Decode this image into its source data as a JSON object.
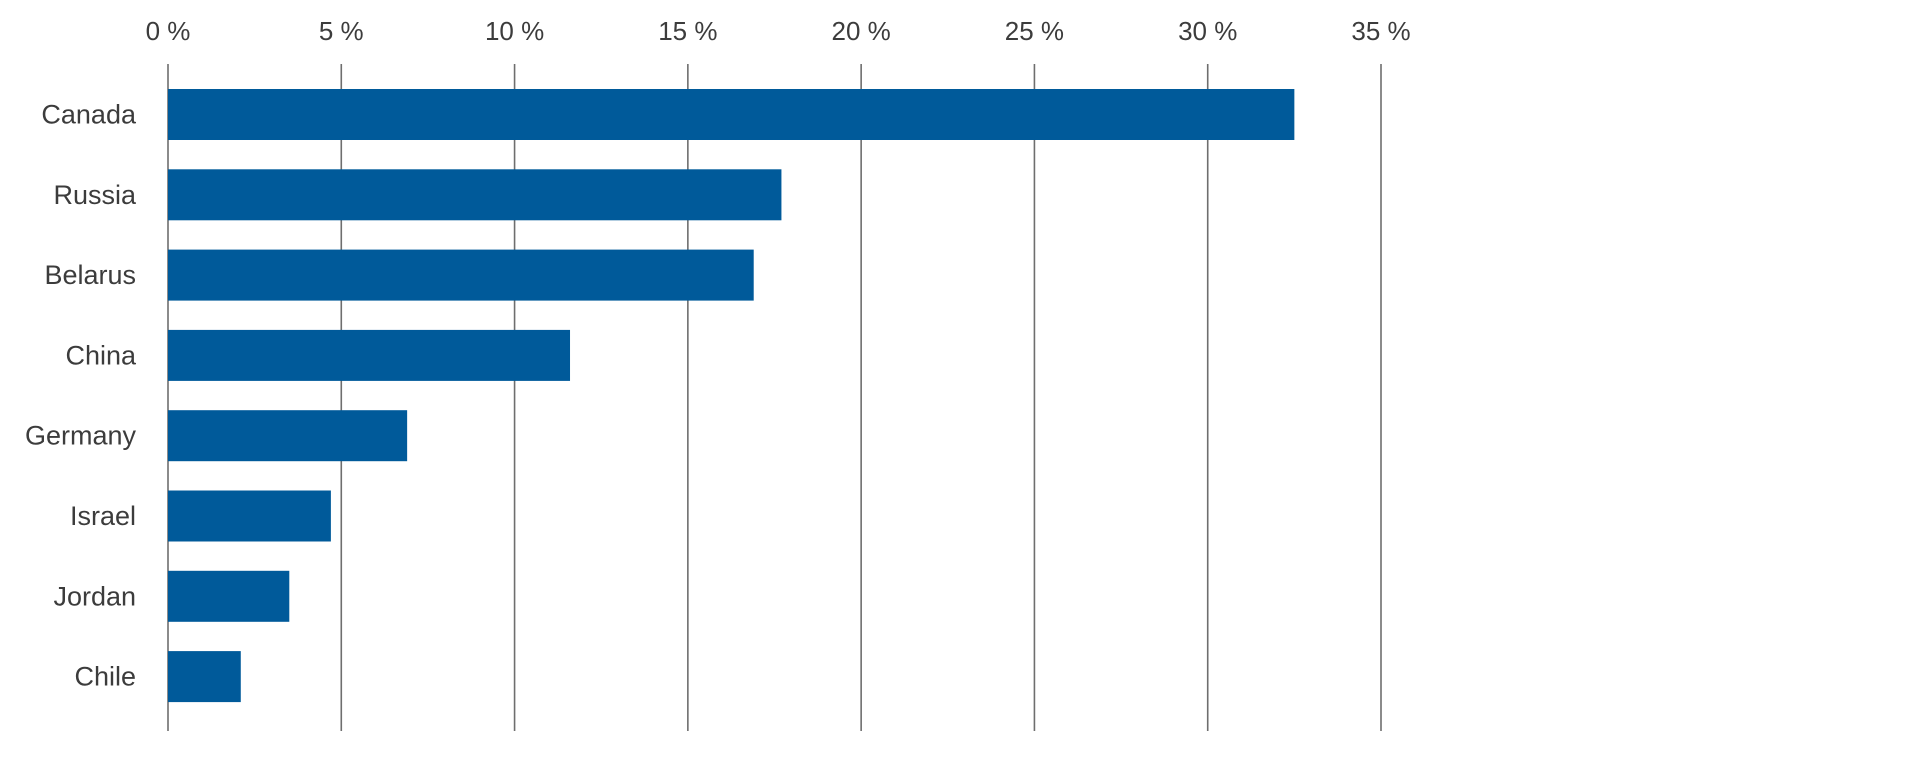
{
  "chart_data": {
    "type": "bar",
    "orientation": "horizontal",
    "categories": [
      "Canada",
      "Russia",
      "Belarus",
      "China",
      "Germany",
      "Israel",
      "Jordan",
      "Chile"
    ],
    "series": [
      {
        "values": [
          32.5,
          17.7,
          16.9,
          11.6,
          6.9,
          4.7,
          3.5,
          2.1
        ]
      }
    ],
    "xlim": [
      0,
      35
    ],
    "x_ticks": [
      0,
      5,
      10,
      15,
      20,
      25,
      30,
      35
    ],
    "x_tick_labels": [
      "0 %",
      "5 %",
      "10 %",
      "15 %",
      "20 %",
      "25 %",
      "30 %",
      "35 %"
    ],
    "x_axis_position": "top",
    "grid": true,
    "legend": "none",
    "title": "",
    "xlabel": "",
    "ylabel": "",
    "colors": {
      "bar": "#005a9a",
      "grid": "#6e6e6e",
      "text": "#3c3c3c"
    }
  }
}
